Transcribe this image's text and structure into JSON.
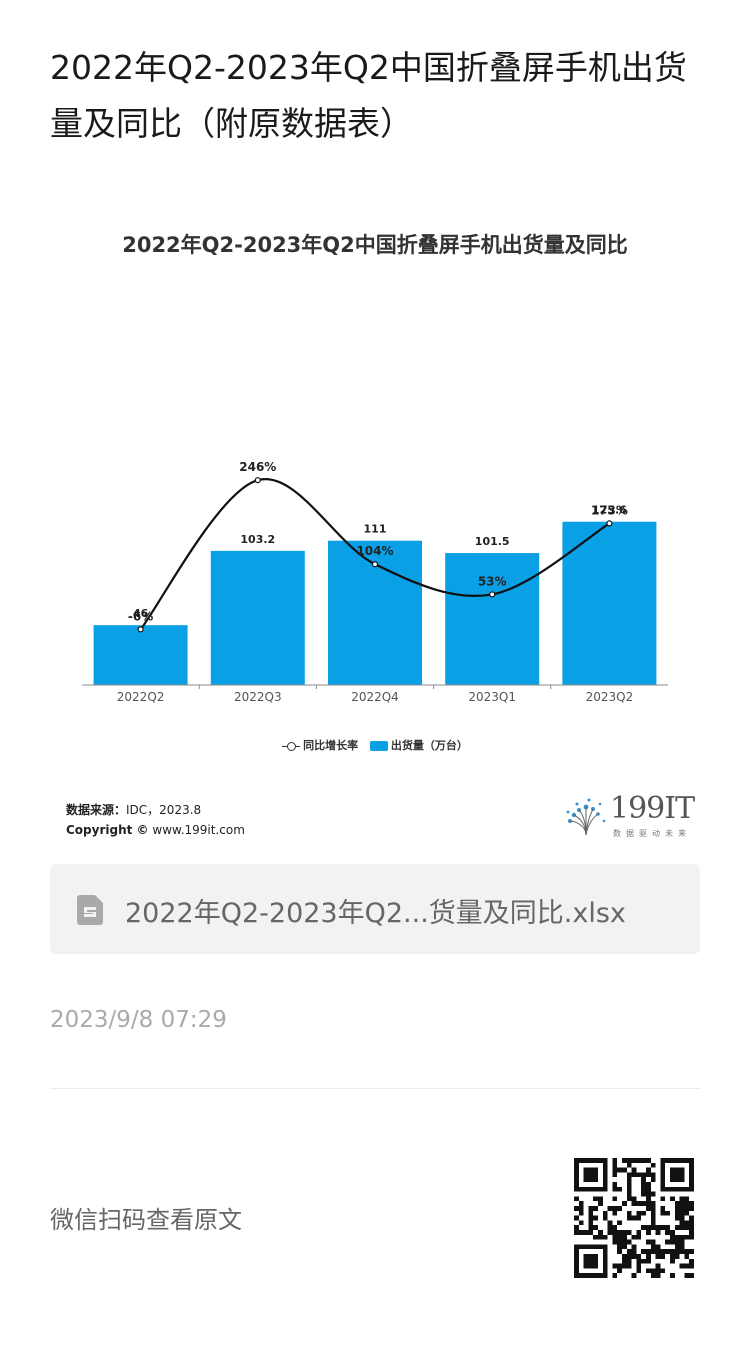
{
  "article": {
    "title": "2022年Q2-2023年Q2中国折叠屏手机出货量及同比（附原数据表）",
    "attachment_name": "2022年Q2-2023年Q2...货量及同比.xlsx",
    "date": "2023/9/8 07:29",
    "scan_prompt": "微信扫码查看原文"
  },
  "chart_data": {
    "type": "bar",
    "title": "2022年Q2-2023年Q2中国折叠屏手机出货量及同比",
    "categories": [
      "2022Q2",
      "2022Q3",
      "2022Q4",
      "2023Q1",
      "2023Q2"
    ],
    "series": [
      {
        "name": "出货量（万台）",
        "type": "bar",
        "values": [
          46,
          103.2,
          111,
          101.5,
          125.6
        ],
        "labels": [
          "46",
          "103.2",
          "111",
          "101.5",
          "125.6"
        ],
        "color": "#0aa0e6"
      },
      {
        "name": "同比增长率",
        "type": "line",
        "values": [
          -6,
          246,
          104,
          53,
          173
        ],
        "labels": [
          "-6%",
          "246%",
          "104%",
          "53%",
          "173%"
        ],
        "color": "#111111"
      }
    ],
    "legend_position": "bottom",
    "grid": false,
    "source_label": "数据来源：",
    "source_value": "IDC，2023.8",
    "copyright_label": "Copyright ©",
    "copyright_value": "www.199it.com"
  },
  "brand": {
    "logo_text": "199IT",
    "logo_subtext": "数据驱动未来"
  }
}
